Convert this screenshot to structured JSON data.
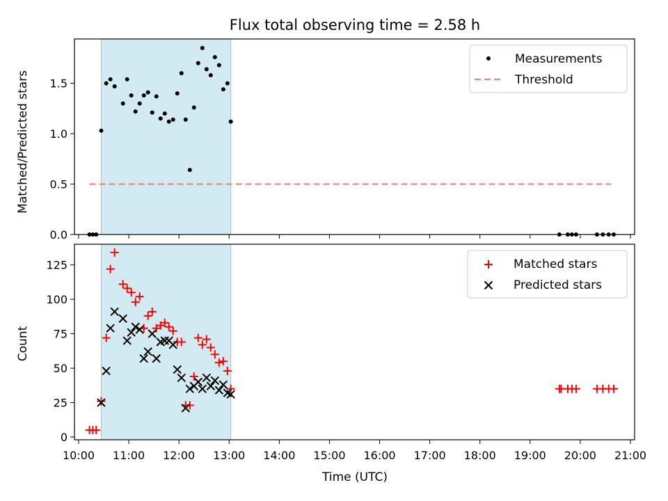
{
  "figure": {
    "title": "Flux total observing time = 2.58 h"
  },
  "colors": {
    "measurement": "#000000",
    "threshold": "#f08080",
    "matched": "#ff0000",
    "predicted": "#000000",
    "span": "#add8e6"
  },
  "chart_data": [
    {
      "type": "scatter",
      "panel": "top",
      "title": "Flux total observing time = 2.58 h",
      "xlabel": "",
      "ylabel": "Matched/Predicted stars",
      "xlim": [
        "09:55",
        "21:05"
      ],
      "ylim": [
        0,
        1.94
      ],
      "yticks": [
        "0.0",
        "0.5",
        "1.0",
        "1.5"
      ],
      "legend_position": "top-right",
      "highlight_span": [
        "10:27",
        "13:02"
      ],
      "threshold": {
        "name": "Threshold",
        "y": 0.5,
        "x_range": [
          "10:13",
          "20:37"
        ],
        "style": "dashed"
      },
      "series": [
        {
          "name": "Measurements",
          "marker": "dot",
          "points": [
            [
              "10:13",
              0.0
            ],
            [
              "10:17",
              0.0
            ],
            [
              "10:21",
              0.0
            ],
            [
              "10:27",
              1.03
            ],
            [
              "10:33",
              1.5
            ],
            [
              "10:38",
              1.54
            ],
            [
              "10:43",
              1.47
            ],
            [
              "10:53",
              1.3
            ],
            [
              "10:58",
              1.54
            ],
            [
              "11:03",
              1.38
            ],
            [
              "11:08",
              1.22
            ],
            [
              "11:13",
              1.3
            ],
            [
              "11:18",
              1.38
            ],
            [
              "11:23",
              1.41
            ],
            [
              "11:28",
              1.21
            ],
            [
              "11:33",
              1.37
            ],
            [
              "11:38",
              1.15
            ],
            [
              "11:43",
              1.2
            ],
            [
              "11:48",
              1.12
            ],
            [
              "11:53",
              1.14
            ],
            [
              "11:58",
              1.4
            ],
            [
              "12:03",
              1.6
            ],
            [
              "12:08",
              1.14
            ],
            [
              "12:13",
              0.64
            ],
            [
              "12:18",
              1.26
            ],
            [
              "12:23",
              1.7
            ],
            [
              "12:28",
              1.85
            ],
            [
              "12:33",
              1.64
            ],
            [
              "12:38",
              1.58
            ],
            [
              "12:43",
              1.76
            ],
            [
              "12:48",
              1.68
            ],
            [
              "12:53",
              1.44
            ],
            [
              "12:58",
              1.5
            ],
            [
              "13:02",
              1.12
            ],
            [
              "19:35",
              0.0
            ],
            [
              "19:45",
              0.0
            ],
            [
              "19:50",
              0.0
            ],
            [
              "19:55",
              0.0
            ],
            [
              "20:20",
              0.0
            ],
            [
              "20:27",
              0.0
            ],
            [
              "20:34",
              0.0
            ],
            [
              "20:40",
              0.0
            ]
          ]
        }
      ]
    },
    {
      "type": "scatter",
      "panel": "bottom",
      "xlabel": "Time (UTC)",
      "ylabel": "Count",
      "xlim": [
        "09:55",
        "21:05"
      ],
      "ylim": [
        -2,
        140
      ],
      "yticks": [
        "0",
        "25",
        "50",
        "75",
        "100",
        "125"
      ],
      "xticks": [
        "10:00",
        "11:00",
        "12:00",
        "13:00",
        "14:00",
        "15:00",
        "16:00",
        "17:00",
        "18:00",
        "19:00",
        "20:00",
        "21:00"
      ],
      "legend_position": "top-right",
      "highlight_span": [
        "10:27",
        "13:02"
      ],
      "series": [
        {
          "name": "Matched stars",
          "marker": "plus",
          "points": [
            [
              "10:13",
              5
            ],
            [
              "10:17",
              5
            ],
            [
              "10:21",
              5
            ],
            [
              "10:27",
              26
            ],
            [
              "10:33",
              72
            ],
            [
              "10:38",
              122
            ],
            [
              "10:43",
              134
            ],
            [
              "10:53",
              111
            ],
            [
              "10:58",
              108
            ],
            [
              "11:03",
              105
            ],
            [
              "11:08",
              98
            ],
            [
              "11:13",
              102
            ],
            [
              "11:18",
              79
            ],
            [
              "11:23",
              88
            ],
            [
              "11:28",
              91
            ],
            [
              "11:33",
              79
            ],
            [
              "11:38",
              81
            ],
            [
              "11:43",
              83
            ],
            [
              "11:48",
              80
            ],
            [
              "11:53",
              77
            ],
            [
              "11:58",
              69
            ],
            [
              "12:03",
              69
            ],
            [
              "12:08",
              23
            ],
            [
              "12:13",
              23
            ],
            [
              "12:18",
              44
            ],
            [
              "12:23",
              72
            ],
            [
              "12:28",
              67
            ],
            [
              "12:33",
              71
            ],
            [
              "12:38",
              65
            ],
            [
              "12:43",
              60
            ],
            [
              "12:48",
              54
            ],
            [
              "12:53",
              55
            ],
            [
              "12:58",
              48
            ],
            [
              "13:02",
              35
            ],
            [
              "19:35",
              35
            ],
            [
              "19:37",
              35
            ],
            [
              "19:45",
              35
            ],
            [
              "19:50",
              35
            ],
            [
              "19:55",
              35
            ],
            [
              "20:20",
              35
            ],
            [
              "20:27",
              35
            ],
            [
              "20:34",
              35
            ],
            [
              "20:40",
              35
            ]
          ]
        },
        {
          "name": "Predicted stars",
          "marker": "x",
          "points": [
            [
              "10:27",
              25
            ],
            [
              "10:33",
              48
            ],
            [
              "10:38",
              79
            ],
            [
              "10:43",
              91
            ],
            [
              "10:53",
              86
            ],
            [
              "10:58",
              70
            ],
            [
              "11:03",
              76
            ],
            [
              "11:08",
              80
            ],
            [
              "11:13",
              78
            ],
            [
              "11:18",
              57
            ],
            [
              "11:23",
              62
            ],
            [
              "11:28",
              75
            ],
            [
              "11:33",
              57
            ],
            [
              "11:38",
              69
            ],
            [
              "11:43",
              70
            ],
            [
              "11:48",
              70
            ],
            [
              "11:53",
              67
            ],
            [
              "11:58",
              49
            ],
            [
              "12:03",
              43
            ],
            [
              "12:08",
              21
            ],
            [
              "12:13",
              35
            ],
            [
              "12:18",
              37
            ],
            [
              "12:23",
              40
            ],
            [
              "12:28",
              35
            ],
            [
              "12:33",
              43
            ],
            [
              "12:38",
              37
            ],
            [
              "12:43",
              41
            ],
            [
              "12:48",
              34
            ],
            [
              "12:53",
              38
            ],
            [
              "12:58",
              32
            ],
            [
              "13:02",
              31
            ]
          ]
        }
      ]
    }
  ]
}
